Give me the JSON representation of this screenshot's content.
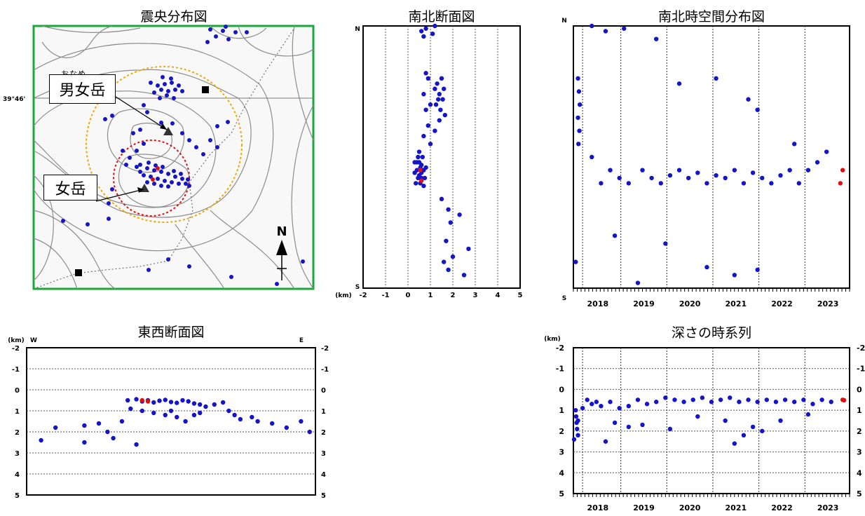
{
  "titles": {
    "epicenter_map": "震央分布図",
    "ns_section": "南北断面図",
    "ns_spacetime": "南北時空間分布図",
    "ew_section": "東西断面図",
    "depth_series": "深さの時系列"
  },
  "map": {
    "lat_label": "39°46'",
    "peak1_name": "男女岳",
    "peak1_ruby": "おなめ",
    "peak2_name": "女岳",
    "north_label": "N"
  },
  "labels": {
    "km": "(km)",
    "north": "N",
    "south": "S",
    "west": "W",
    "east": "E"
  },
  "colors": {
    "events": "#1414c8",
    "latest_events": "#e01010",
    "map_frame": "#1aa83c",
    "outer_circle": "#f0a800",
    "inner_circle": "#e01010"
  },
  "chart_data": [
    {
      "type": "scatter",
      "title": "南北断面図",
      "xlabel": "(km)",
      "x_ticks": [
        "-2",
        "-1",
        "0",
        "1",
        "2",
        "3",
        "4",
        "5"
      ],
      "xlim": [
        -2,
        5
      ],
      "y_axis_ends": [
        "N",
        "S"
      ],
      "series": [
        {
          "points": [
            [
              0.5,
              0.52
            ],
            [
              0.6,
              0.53
            ],
            [
              0.4,
              0.55
            ],
            [
              0.7,
              0.55
            ],
            [
              0.5,
              0.57
            ],
            [
              0.6,
              0.58
            ],
            [
              0.3,
              0.56
            ],
            [
              0.8,
              0.54
            ],
            [
              0.45,
              0.5
            ],
            [
              0.55,
              0.6
            ],
            [
              0.35,
              0.6
            ],
            [
              0.75,
              0.58
            ],
            [
              0.65,
              0.5
            ],
            [
              0.5,
              0.48
            ],
            [
              0.3,
              0.52
            ],
            [
              0.7,
              0.61
            ],
            [
              0.55,
              0.54
            ],
            [
              0.45,
              0.58
            ],
            [
              0.6,
              0.56
            ],
            [
              0.4,
              0.52
            ],
            [
              1.5,
              0.2
            ],
            [
              1.3,
              0.22
            ],
            [
              1.6,
              0.24
            ],
            [
              1.4,
              0.26
            ],
            [
              1.55,
              0.28
            ],
            [
              1.25,
              0.3
            ],
            [
              1.45,
              0.32
            ],
            [
              1.65,
              0.34
            ],
            [
              1.35,
              0.28
            ],
            [
              1.2,
              0.24
            ],
            [
              0.8,
              0.18
            ],
            [
              0.9,
              0.2
            ],
            [
              0.7,
              0.26
            ],
            [
              1.0,
              0.3
            ],
            [
              0.8,
              0.32
            ],
            [
              0.9,
              0.38
            ],
            [
              0.7,
              0.42
            ],
            [
              1.0,
              0.45
            ],
            [
              1.2,
              0.4
            ],
            [
              1.4,
              0.36
            ],
            [
              0.6,
              0.02
            ],
            [
              0.8,
              0.01
            ],
            [
              1.2,
              0.0
            ],
            [
              0.7,
              0.04
            ],
            [
              1.1,
              0.03
            ],
            [
              1.8,
              0.7
            ],
            [
              1.9,
              0.75
            ],
            [
              1.7,
              0.82
            ],
            [
              2.0,
              0.88
            ],
            [
              1.8,
              0.93
            ],
            [
              2.5,
              0.95
            ],
            [
              2.7,
              0.85
            ],
            [
              1.5,
              0.66
            ],
            [
              2.3,
              0.72
            ],
            [
              1.6,
              0.9
            ]
          ]
        }
      ]
    },
    {
      "type": "scatter",
      "title": "南北時空間分布図",
      "x_ticks": [
        "2018",
        "2019",
        "2020",
        "2021",
        "2022",
        "2023"
      ],
      "xlim": [
        2017.5,
        2023.5
      ],
      "y_axis_ends": [
        "N",
        "S"
      ],
      "series": [
        {
          "points": [
            [
              2017.6,
              0.2
            ],
            [
              2017.62,
              0.25
            ],
            [
              2017.64,
              0.3
            ],
            [
              2017.6,
              0.35
            ],
            [
              2017.63,
              0.4
            ],
            [
              2017.61,
              0.45
            ],
            [
              2017.9,
              0.5
            ],
            [
              2018.1,
              0.6
            ],
            [
              2018.3,
              0.55
            ],
            [
              2018.5,
              0.58
            ],
            [
              2018.7,
              0.6
            ],
            [
              2019.0,
              0.55
            ],
            [
              2019.2,
              0.58
            ],
            [
              2019.4,
              0.6
            ],
            [
              2019.6,
              0.57
            ],
            [
              2019.8,
              0.55
            ],
            [
              2020.0,
              0.58
            ],
            [
              2020.2,
              0.56
            ],
            [
              2020.4,
              0.6
            ],
            [
              2020.6,
              0.57
            ],
            [
              2020.8,
              0.58
            ],
            [
              2021.0,
              0.55
            ],
            [
              2021.2,
              0.6
            ],
            [
              2021.4,
              0.56
            ],
            [
              2021.6,
              0.58
            ],
            [
              2021.8,
              0.6
            ],
            [
              2022.0,
              0.57
            ],
            [
              2022.2,
              0.55
            ],
            [
              2022.4,
              0.6
            ],
            [
              2022.6,
              0.55
            ],
            [
              2022.8,
              0.52
            ],
            [
              2023.0,
              0.48
            ],
            [
              2017.9,
              0.0
            ],
            [
              2018.2,
              0.02
            ],
            [
              2018.6,
              0.01
            ],
            [
              2019.3,
              0.05
            ],
            [
              2019.8,
              0.22
            ],
            [
              2020.6,
              0.2
            ],
            [
              2021.3,
              0.28
            ],
            [
              2021.5,
              0.32
            ],
            [
              2022.3,
              0.45
            ],
            [
              2018.4,
              0.8
            ],
            [
              2018.9,
              0.98
            ],
            [
              2019.5,
              0.83
            ],
            [
              2020.4,
              0.92
            ],
            [
              2021.0,
              0.95
            ],
            [
              2021.5,
              0.93
            ],
            [
              2017.55,
              0.9
            ]
          ]
        },
        {
          "points": [
            [
              2023.35,
              0.55
            ],
            [
              2023.3,
              0.6
            ]
          ]
        }
      ]
    },
    {
      "type": "scatter",
      "title": "東西断面図",
      "ylabel": "(km)",
      "y_ticks": [
        "-2",
        "-1",
        "0",
        "1",
        "2",
        "3",
        "4",
        "5"
      ],
      "ylim": [
        -2,
        5
      ],
      "x_axis_ends": [
        "W",
        "E"
      ],
      "series": [
        {
          "points": [
            [
              0.35,
              0.5
            ],
            [
              0.38,
              0.45
            ],
            [
              0.4,
              0.55
            ],
            [
              0.42,
              0.5
            ],
            [
              0.44,
              0.6
            ],
            [
              0.46,
              0.52
            ],
            [
              0.48,
              0.48
            ],
            [
              0.5,
              0.58
            ],
            [
              0.52,
              0.62
            ],
            [
              0.54,
              0.5
            ],
            [
              0.56,
              0.55
            ],
            [
              0.58,
              0.65
            ],
            [
              0.6,
              0.7
            ],
            [
              0.36,
              0.9
            ],
            [
              0.4,
              1.0
            ],
            [
              0.44,
              1.1
            ],
            [
              0.48,
              1.2
            ],
            [
              0.5,
              1.0
            ],
            [
              0.52,
              1.3
            ],
            [
              0.55,
              1.5
            ],
            [
              0.58,
              1.2
            ],
            [
              0.6,
              1.1
            ],
            [
              0.62,
              0.8
            ],
            [
              0.65,
              0.7
            ],
            [
              0.68,
              0.6
            ],
            [
              0.7,
              1.0
            ],
            [
              0.72,
              1.2
            ],
            [
              0.74,
              1.4
            ],
            [
              0.05,
              2.4
            ],
            [
              0.1,
              1.8
            ],
            [
              0.2,
              1.7
            ],
            [
              0.25,
              1.6
            ],
            [
              0.28,
              2.0
            ],
            [
              0.3,
              2.3
            ],
            [
              0.33,
              1.5
            ],
            [
              0.38,
              2.6
            ],
            [
              0.78,
              1.3
            ],
            [
              0.8,
              1.5
            ],
            [
              0.85,
              1.6
            ],
            [
              0.9,
              1.8
            ],
            [
              0.95,
              1.5
            ],
            [
              0.98,
              2.0
            ],
            [
              0.2,
              2.5
            ]
          ]
        },
        {
          "points": [
            [
              0.4,
              0.5
            ],
            [
              0.42,
              0.55
            ]
          ]
        }
      ]
    },
    {
      "type": "scatter",
      "title": "深さの時系列",
      "ylabel": "(km)",
      "y_ticks": [
        "-2",
        "-1",
        "0",
        "1",
        "2",
        "3",
        "4",
        "5"
      ],
      "ylim": [
        -2,
        5
      ],
      "x_ticks": [
        "2018",
        "2019",
        "2020",
        "2021",
        "2022",
        "2023"
      ],
      "xlim": [
        2017.5,
        2023.5
      ],
      "series": [
        {
          "points": [
            [
              2017.55,
              1.0
            ],
            [
              2017.56,
              1.3
            ],
            [
              2017.57,
              1.6
            ],
            [
              2017.58,
              1.9
            ],
            [
              2017.6,
              1.5
            ],
            [
              2017.6,
              2.2
            ],
            [
              2017.5,
              2.4
            ],
            [
              2017.7,
              0.9
            ],
            [
              2017.8,
              0.5
            ],
            [
              2017.9,
              0.7
            ],
            [
              2018.0,
              0.6
            ],
            [
              2018.1,
              0.8
            ],
            [
              2018.3,
              0.6
            ],
            [
              2018.5,
              0.9
            ],
            [
              2018.7,
              0.8
            ],
            [
              2018.9,
              0.5
            ],
            [
              2019.1,
              0.7
            ],
            [
              2019.3,
              0.6
            ],
            [
              2019.5,
              0.4
            ],
            [
              2019.7,
              0.5
            ],
            [
              2019.9,
              0.6
            ],
            [
              2020.1,
              0.5
            ],
            [
              2020.3,
              0.4
            ],
            [
              2020.5,
              0.6
            ],
            [
              2020.7,
              0.5
            ],
            [
              2020.9,
              0.4
            ],
            [
              2021.1,
              0.6
            ],
            [
              2021.3,
              0.5
            ],
            [
              2021.5,
              0.6
            ],
            [
              2021.7,
              0.5
            ],
            [
              2021.9,
              0.6
            ],
            [
              2022.1,
              0.5
            ],
            [
              2022.3,
              0.6
            ],
            [
              2022.5,
              0.5
            ],
            [
              2022.7,
              0.7
            ],
            [
              2022.9,
              0.5
            ],
            [
              2023.1,
              0.6
            ],
            [
              2018.2,
              2.5
            ],
            [
              2018.4,
              1.6
            ],
            [
              2018.7,
              1.8
            ],
            [
              2019.0,
              1.7
            ],
            [
              2019.6,
              1.9
            ],
            [
              2020.2,
              1.3
            ],
            [
              2020.8,
              1.5
            ],
            [
              2021.0,
              2.6
            ],
            [
              2021.2,
              2.2
            ],
            [
              2021.4,
              1.8
            ],
            [
              2021.6,
              2.0
            ],
            [
              2022.0,
              1.5
            ],
            [
              2022.6,
              1.2
            ]
          ]
        },
        {
          "points": [
            [
              2023.35,
              0.5
            ],
            [
              2023.38,
              0.52
            ]
          ]
        }
      ]
    }
  ]
}
